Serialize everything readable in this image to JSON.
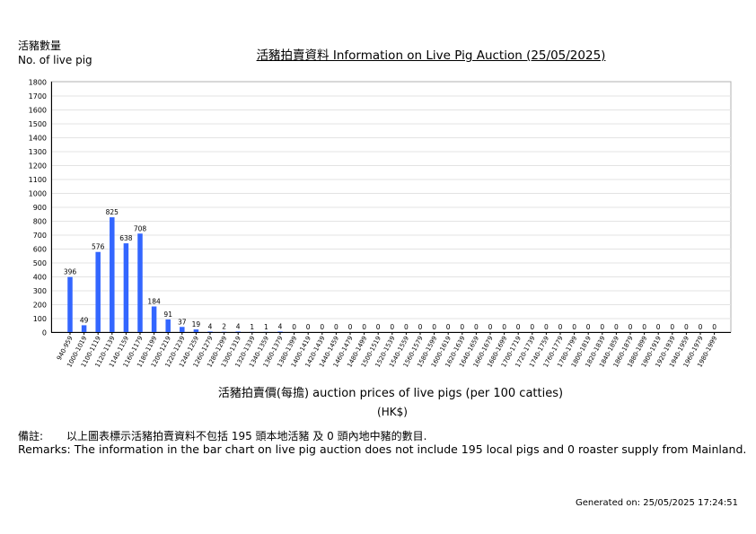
{
  "header": {
    "ylabel_zh": "活豬數量",
    "ylabel_en": "No. of live pig",
    "title": "活豬拍賣資料 Information on Live Pig Auction (25/05/2025)"
  },
  "footer": {
    "xlabel": "活豬拍賣價(每擔) auction prices of live pigs (per 100 catties)",
    "unit": "(HK$)",
    "remark_zh_label": "備註:",
    "remark_zh": "以上圖表標示活豬拍賣資料不包括 195 頭本地活豬 及 0 頭內地中豬的數目.",
    "remark_en": "Remarks: The information in the bar chart on live pig auction does not include 195 local pigs and 0 roaster supply from Mainland.",
    "generated": "Generated on: 25/05/2025 17:24:51"
  },
  "chart_data": {
    "type": "bar",
    "title": "活豬拍賣資料 Information on Live Pig Auction (25/05/2025)",
    "xlabel": "活豬拍賣價(每擔) auction prices of live pigs (per 100 catties)",
    "ylabel": "No. of live pig",
    "ylim": [
      0,
      1800
    ],
    "yticks": [
      0,
      100,
      200,
      300,
      400,
      500,
      600,
      700,
      800,
      900,
      1000,
      1100,
      1200,
      1300,
      1400,
      1500,
      1600,
      1700,
      1800
    ],
    "grid": true,
    "bar_color": "#3366ff",
    "categories": [
      "940-959",
      "1000-1019",
      "1100-1119",
      "1120-1139",
      "1140-1159",
      "1160-1179",
      "1180-1199",
      "1200-1219",
      "1220-1239",
      "1240-1259",
      "1260-1279",
      "1280-1299",
      "1300-1319",
      "1320-1339",
      "1340-1359",
      "1360-1379",
      "1380-1399",
      "1400-1419",
      "1420-1439",
      "1440-1459",
      "1460-1479",
      "1480-1499",
      "1500-1519",
      "1520-1539",
      "1540-1559",
      "1560-1579",
      "1580-1599",
      "1600-1619",
      "1620-1639",
      "1640-1659",
      "1660-1679",
      "1680-1699",
      "1700-1719",
      "1720-1739",
      "1740-1759",
      "1760-1779",
      "1780-1799",
      "1800-1819",
      "1820-1839",
      "1840-1859",
      "1860-1879",
      "1880-1899",
      "1900-1919",
      "1920-1939",
      "1940-1959",
      "1960-1979",
      "1980-1999"
    ],
    "values": [
      396,
      49,
      576,
      825,
      638,
      708,
      184,
      91,
      37,
      19,
      4,
      2,
      4,
      1,
      1,
      4,
      0,
      0,
      0,
      0,
      0,
      0,
      0,
      0,
      0,
      0,
      0,
      0,
      0,
      0,
      0,
      0,
      0,
      0,
      0,
      0,
      0,
      0,
      0,
      0,
      0,
      0,
      0,
      0,
      0,
      0,
      0
    ]
  }
}
